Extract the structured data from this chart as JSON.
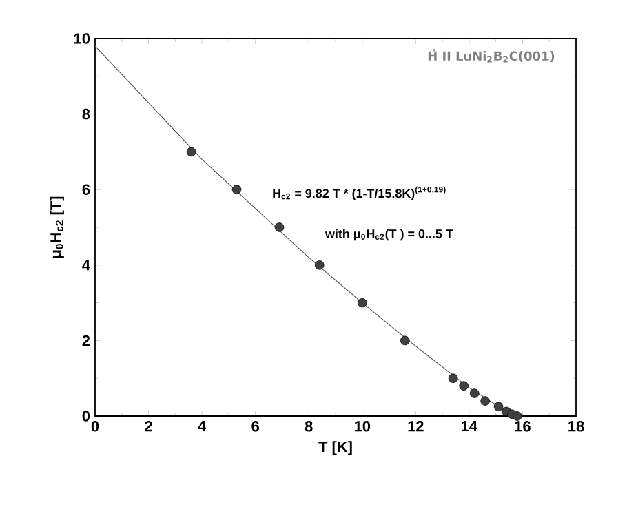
{
  "chart_data": {
    "type": "scatter",
    "xlabel": "T [K]",
    "ylabel": "μ$_{0}$H$_{c2}$ [T]",
    "xlim": [
      0,
      18
    ],
    "xticks": [
      0,
      2,
      4,
      6,
      8,
      10,
      12,
      14,
      16,
      18
    ],
    "ylim": [
      0,
      10
    ],
    "yticks": [
      0,
      2,
      4,
      6,
      8,
      10
    ],
    "annotations": [
      "H⃗ II LuNi$_{2}$B$_{2}$C(001)",
      "H$_{c2}$ = 9.82 T * (1-T/15.8K)$^{(1+0.19)}$",
      "with μ$_{0}$H$_{c2}$(T ) = 0...5 T"
    ],
    "series": [
      {
        "color": "#333333",
        "marker": "circle",
        "x": [
          3.6,
          5.3,
          6.9,
          8.4,
          10.0,
          11.6,
          13.4,
          13.8,
          14.2,
          14.6,
          15.1,
          15.4,
          15.6,
          15.8
        ],
        "values": [
          7.0,
          6.0,
          5.0,
          4.0,
          3.0,
          2.0,
          1.0,
          0.8,
          0.6,
          0.4,
          0.25,
          0.12,
          0.05,
          0.0
        ]
      },
      {
        "type": "line",
        "color": "#555555",
        "marker": "none",
        "line_style": "solid",
        "x": [
          0,
          2,
          4,
          6,
          8,
          10,
          12,
          14,
          15,
          15.8
        ],
        "values": [
          9.8,
          8.3,
          6.8,
          5.5,
          4.2,
          3.0,
          1.85,
          0.75,
          0.3,
          0.0
        ]
      }
    ]
  }
}
